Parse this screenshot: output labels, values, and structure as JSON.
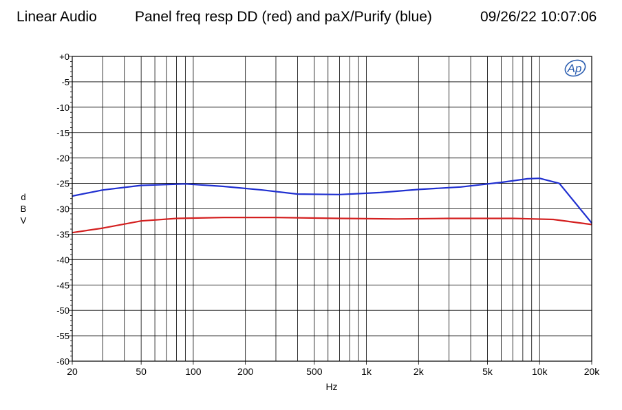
{
  "header": {
    "left": "Linear Audio",
    "center": "Panel freq resp DD (red) and paX/Purify (blue)",
    "right": "09/26/22 10:07:06"
  },
  "logo": {
    "text": "Ap"
  },
  "chart_data": {
    "type": "line",
    "xlabel": "Hz",
    "ylabel": "dBV",
    "x_scale": "log",
    "xlim": [
      20,
      20000
    ],
    "ylim": [
      -60,
      0
    ],
    "grid": true,
    "x_ticks": [
      {
        "v": 20,
        "label": "20"
      },
      {
        "v": 50,
        "label": "50"
      },
      {
        "v": 100,
        "label": "100"
      },
      {
        "v": 200,
        "label": "200"
      },
      {
        "v": 500,
        "label": "500"
      },
      {
        "v": 1000,
        "label": "1k"
      },
      {
        "v": 2000,
        "label": "2k"
      },
      {
        "v": 5000,
        "label": "5k"
      },
      {
        "v": 10000,
        "label": "10k"
      },
      {
        "v": 20000,
        "label": "20k"
      }
    ],
    "y_ticks": [
      {
        "v": 0,
        "label": "+0"
      },
      {
        "v": -5,
        "label": "-5"
      },
      {
        "v": -10,
        "label": "-10"
      },
      {
        "v": -15,
        "label": "-15"
      },
      {
        "v": -20,
        "label": "-20"
      },
      {
        "v": -25,
        "label": "-25"
      },
      {
        "v": -30,
        "label": "-30"
      },
      {
        "v": -35,
        "label": "-35"
      },
      {
        "v": -40,
        "label": "-40"
      },
      {
        "v": -45,
        "label": "-45"
      },
      {
        "v": -50,
        "label": "-50"
      },
      {
        "v": -55,
        "label": "-55"
      },
      {
        "v": -60,
        "label": "-60"
      }
    ],
    "series": [
      {
        "color": "#d42020",
        "points": [
          [
            20,
            -34.7
          ],
          [
            30,
            -33.8
          ],
          [
            50,
            -32.4
          ],
          [
            80,
            -31.9
          ],
          [
            150,
            -31.7
          ],
          [
            300,
            -31.7
          ],
          [
            700,
            -31.9
          ],
          [
            1500,
            -32.0
          ],
          [
            3000,
            -31.9
          ],
          [
            7000,
            -31.9
          ],
          [
            12000,
            -32.1
          ],
          [
            20000,
            -33.1
          ]
        ]
      },
      {
        "color": "#1f2fd0",
        "points": [
          [
            20,
            -27.5
          ],
          [
            30,
            -26.3
          ],
          [
            50,
            -25.4
          ],
          [
            90,
            -25.1
          ],
          [
            150,
            -25.6
          ],
          [
            250,
            -26.3
          ],
          [
            400,
            -27.1
          ],
          [
            700,
            -27.2
          ],
          [
            1200,
            -26.8
          ],
          [
            2000,
            -26.2
          ],
          [
            3500,
            -25.7
          ],
          [
            6000,
            -24.8
          ],
          [
            8500,
            -24.1
          ],
          [
            10000,
            -24.0
          ],
          [
            13000,
            -25.0
          ],
          [
            20000,
            -32.8
          ]
        ]
      }
    ]
  }
}
